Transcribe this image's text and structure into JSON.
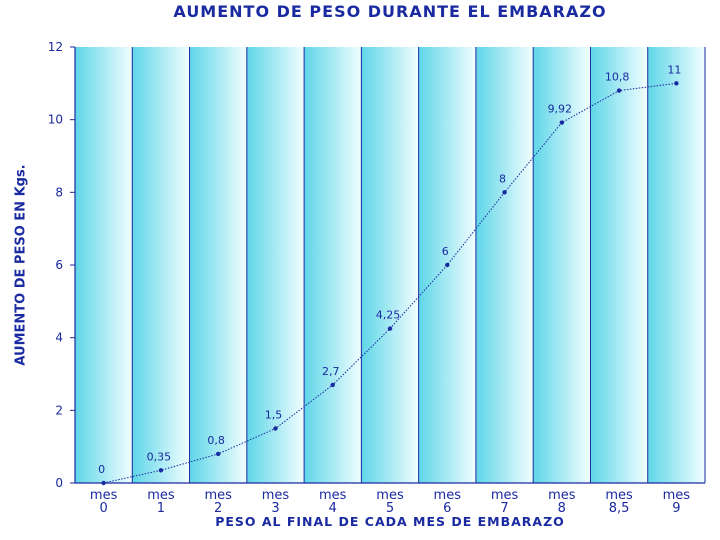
{
  "chart_data": {
    "type": "line",
    "title": "AUMENTO DE PESO DURANTE EL EMBARAZO",
    "xlabel": "PESO AL FINAL DE CADA MES DE EMBARAZO",
    "ylabel": "AUMENTO DE PESO EN Kgs.",
    "categories": [
      [
        "mes",
        "0"
      ],
      [
        "mes",
        "1"
      ],
      [
        "mes",
        "2"
      ],
      [
        "mes",
        "3"
      ],
      [
        "mes",
        "4"
      ],
      [
        "mes",
        "5"
      ],
      [
        "mes",
        "6"
      ],
      [
        "mes",
        "7"
      ],
      [
        "mes",
        "8"
      ],
      [
        "mes",
        "8,5"
      ],
      [
        "mes",
        "9"
      ]
    ],
    "values": [
      0,
      0.35,
      0.8,
      1.5,
      2.7,
      4.25,
      6,
      8,
      9.92,
      10.8,
      11
    ],
    "data_labels": [
      "0",
      "0,35",
      "0,8",
      "1,5",
      "2,7",
      "4,25",
      "6",
      "8",
      "9,92",
      "10,8",
      "11"
    ],
    "ylim": [
      0,
      12
    ],
    "yticks": [
      0,
      2,
      4,
      6,
      8,
      10,
      12
    ],
    "grid": "vertical",
    "colors": {
      "text": "#1a2aa0",
      "line": "#1a2aa0",
      "grid": "#1a2aa0",
      "band_dark": "#5fd6e8",
      "band_light": "#f2feff"
    }
  }
}
